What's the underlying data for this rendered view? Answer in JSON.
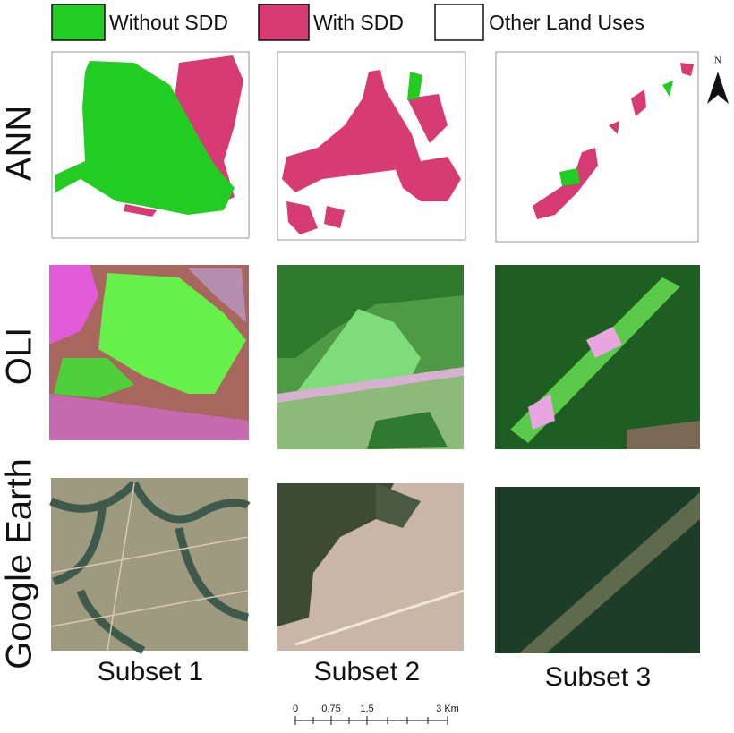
{
  "legend": [
    "Without SDD",
    "With SDD",
    "Other Land Uses"
  ],
  "rows": [
    "ANN",
    "OLI",
    "Google Earth"
  ],
  "columns": [
    "Subset 1",
    "Subset 2",
    "Subset 3"
  ],
  "scale_bar": [
    "0",
    "0,75",
    "1,5",
    "3 Km"
  ],
  "north": "N"
}
